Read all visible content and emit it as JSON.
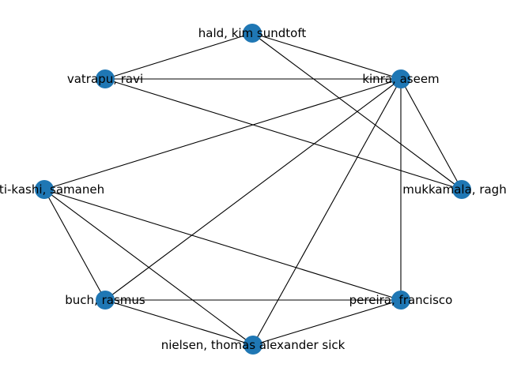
{
  "graph": {
    "node_color": "#1f77b4",
    "edge_color": "#000000",
    "nodes": [
      {
        "id": "hald",
        "label": "hald, kim sundtoft"
      },
      {
        "id": "vatrapu",
        "label": "vatrapu, ravi"
      },
      {
        "id": "kinra",
        "label": "kinra, aseem"
      },
      {
        "id": "zadeh",
        "label": "ghti-kashi, samaneh"
      },
      {
        "id": "mukkamala",
        "label": "mukkamala, raghav"
      },
      {
        "id": "buch",
        "label": "buch, rasmus"
      },
      {
        "id": "pereira",
        "label": "pereira, francisco"
      },
      {
        "id": "nielsen",
        "label": "nielsen, thomas alexander sick"
      }
    ],
    "edges": [
      [
        "hald",
        "vatrapu"
      ],
      [
        "hald",
        "kinra"
      ],
      [
        "hald",
        "mukkamala"
      ],
      [
        "vatrapu",
        "kinra"
      ],
      [
        "vatrapu",
        "mukkamala"
      ],
      [
        "kinra",
        "zadeh"
      ],
      [
        "kinra",
        "mukkamala"
      ],
      [
        "kinra",
        "buch"
      ],
      [
        "kinra",
        "pereira"
      ],
      [
        "kinra",
        "nielsen"
      ],
      [
        "zadeh",
        "buch"
      ],
      [
        "zadeh",
        "nielsen"
      ],
      [
        "zadeh",
        "pereira"
      ],
      [
        "buch",
        "pereira"
      ],
      [
        "buch",
        "nielsen"
      ],
      [
        "pereira",
        "nielsen"
      ]
    ]
  }
}
